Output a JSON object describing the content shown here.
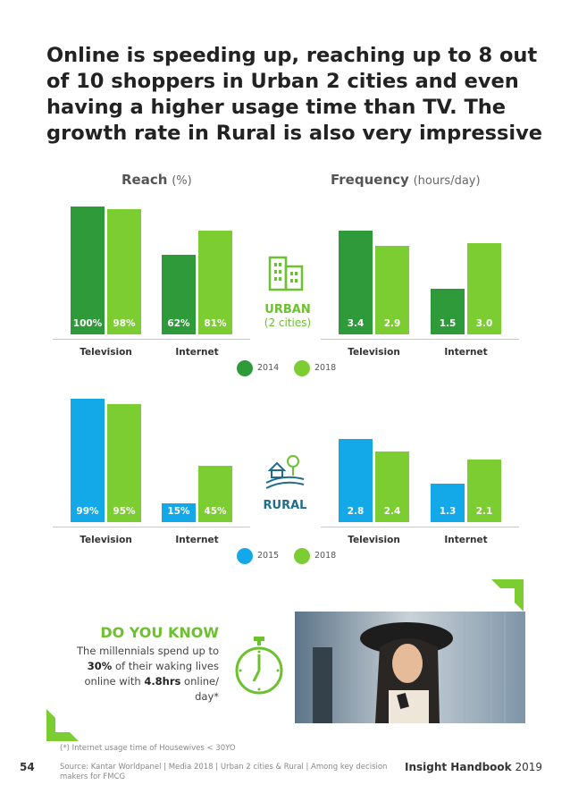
{
  "page": {
    "title": "Online is speeding up, reaching up to 8 out of 10 shoppers in Urban 2 cities and even having a higher usage time than TV. The growth rate in Rural is also very impressive",
    "reach_title": "Reach",
    "reach_unit": "(%)",
    "frequency_title": "Frequency",
    "frequency_unit": "(hours/day)",
    "urban_label": "URBAN",
    "urban_sublabel": "(2 cities)",
    "rural_label": "RURAL",
    "dyk": {
      "title": "DO YOU KNOW",
      "line1": "The millennials spend up to",
      "pct": "30%",
      "line2": " of their waking lives",
      "line3": "online with ",
      "hrs": "4.8hrs",
      "line4": " online/",
      "line5": "day*"
    },
    "footnote": "(*) Internet usage time of Housewives < 30YO",
    "source": "Source: Kantar Worldpanel | Media 2018 | Urban 2 cities & Rural | Among key decision makers for FMCG",
    "page_number": "54",
    "handbook_bold": "Insight Handbook",
    "handbook_year": " 2019"
  },
  "colors": {
    "urban_2014": "#2f9a3a",
    "urban_2018": "#7ccd31",
    "rural_2015": "#13a9e8",
    "rural_2018": "#7ccd31",
    "icon_green": "#6cc12e",
    "icon_blue": "#1f6d8a",
    "corner_green": "#7ccd31"
  },
  "chart_data": [
    {
      "type": "bar",
      "region": "Urban",
      "metric": "Reach",
      "unit": "%",
      "categories": [
        "Television",
        "Internet"
      ],
      "series": [
        {
          "name": "2014",
          "values": [
            100,
            62
          ],
          "labels": [
            "100%",
            "62%"
          ]
        },
        {
          "name": "2018",
          "values": [
            98,
            81
          ],
          "labels": [
            "98%",
            "81%"
          ]
        }
      ],
      "ylim": [
        0,
        100
      ]
    },
    {
      "type": "bar",
      "region": "Urban",
      "metric": "Frequency",
      "unit": "hours/day",
      "categories": [
        "Television",
        "Internet"
      ],
      "series": [
        {
          "name": "2014",
          "values": [
            3.4,
            1.5
          ],
          "labels": [
            "3.4",
            "1.5"
          ]
        },
        {
          "name": "2018",
          "values": [
            2.9,
            3.0
          ],
          "labels": [
            "2.9",
            "3.0"
          ]
        }
      ],
      "ylim": [
        0,
        4.2
      ]
    },
    {
      "type": "bar",
      "region": "Rural",
      "metric": "Reach",
      "unit": "%",
      "categories": [
        "Television",
        "Internet"
      ],
      "series": [
        {
          "name": "2015",
          "values": [
            99,
            15
          ],
          "labels": [
            "99%",
            "15%"
          ]
        },
        {
          "name": "2018",
          "values": [
            95,
            45
          ],
          "labels": [
            "95%",
            "45%"
          ]
        }
      ],
      "ylim": [
        0,
        100
      ]
    },
    {
      "type": "bar",
      "region": "Rural",
      "metric": "Frequency",
      "unit": "hours/day",
      "categories": [
        "Television",
        "Internet"
      ],
      "series": [
        {
          "name": "2015",
          "values": [
            2.8,
            1.3
          ],
          "labels": [
            "2.8",
            "1.3"
          ]
        },
        {
          "name": "2018",
          "values": [
            2.4,
            2.1
          ],
          "labels": [
            "2.4",
            "2.1"
          ]
        }
      ],
      "ylim": [
        0,
        4.2
      ]
    }
  ]
}
